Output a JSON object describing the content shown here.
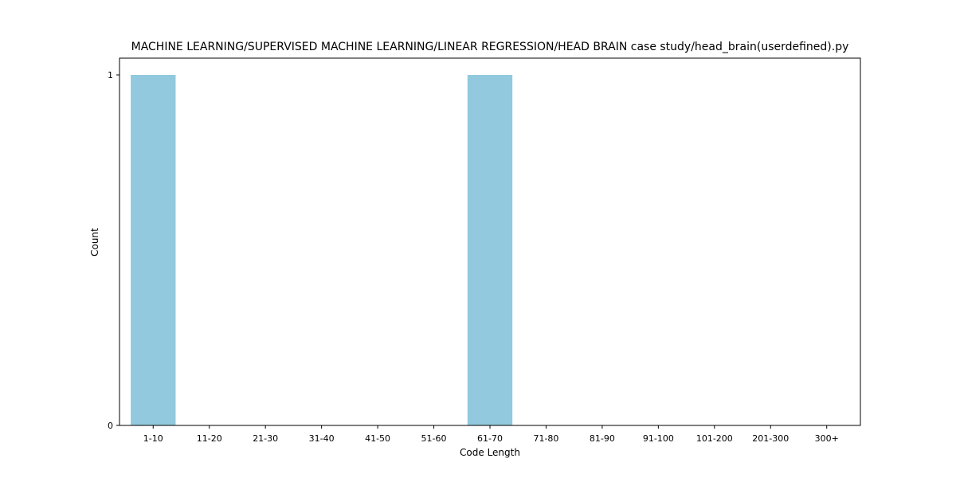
{
  "chart_data": {
    "type": "bar",
    "title": "MACHINE LEARNING/SUPERVISED MACHINE LEARNING/LINEAR REGRESSION/HEAD BRAIN case study/head_brain(userdefined).py",
    "xlabel": "Code Length",
    "ylabel": "Count",
    "categories": [
      "1-10",
      "11-20",
      "21-30",
      "31-40",
      "41-50",
      "51-60",
      "61-70",
      "71-80",
      "81-90",
      "91-100",
      "101-200",
      "201-300",
      "300+"
    ],
    "values": [
      1,
      0,
      0,
      0,
      0,
      0,
      1,
      0,
      0,
      0,
      0,
      0,
      0
    ],
    "ylim": [
      0,
      1
    ],
    "yticks": [
      0,
      1
    ],
    "grid": false,
    "bar_color": "#92c9de",
    "axis_color": "#000000"
  }
}
